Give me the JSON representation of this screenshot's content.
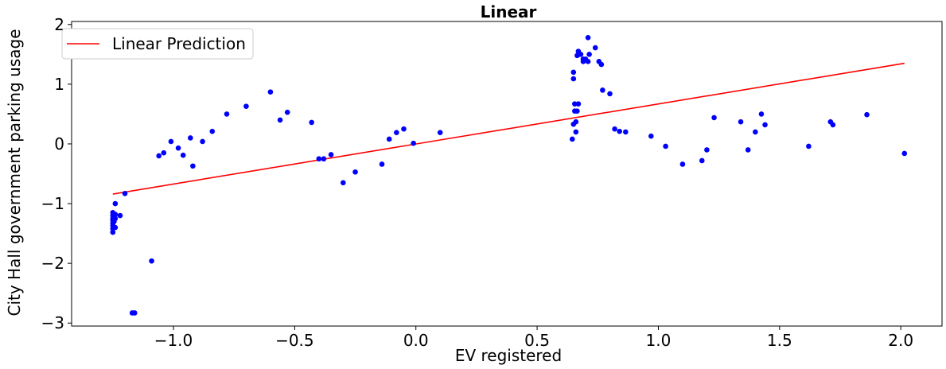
{
  "chart_data": {
    "type": "scatter",
    "title": "Linear",
    "xlabel": "EV registered",
    "ylabel": "City Hall government parking usage",
    "xlim": [
      -1.42,
      2.17
    ],
    "ylim": [
      -3.05,
      2.05
    ],
    "xticks": [
      -1.0,
      -0.5,
      0.0,
      0.5,
      1.0,
      1.5,
      2.0
    ],
    "xtick_labels": [
      "−1.0",
      "−0.5",
      "0.0",
      "0.5",
      "1.0",
      "1.5",
      "2.0"
    ],
    "yticks": [
      -3,
      -2,
      -1,
      0,
      1,
      2
    ],
    "ytick_labels": [
      "−3",
      "−2",
      "−1",
      "0",
      "1",
      "2"
    ],
    "grid": false,
    "legend": {
      "position": "top-left",
      "entries": [
        "Linear Prediction"
      ]
    },
    "series": [
      {
        "kind": "scatter",
        "color": "#0000ff",
        "points": [
          [
            -1.25,
            -1.48
          ],
          [
            -1.25,
            -1.42
          ],
          [
            -1.25,
            -1.37
          ],
          [
            -1.25,
            -1.33
          ],
          [
            -1.25,
            -1.28
          ],
          [
            -1.25,
            -1.25
          ],
          [
            -1.25,
            -1.2
          ],
          [
            -1.25,
            -1.15
          ],
          [
            -1.245,
            -1.3
          ],
          [
            -1.24,
            -1.4
          ],
          [
            -1.24,
            -1.25
          ],
          [
            -1.24,
            -1.18
          ],
          [
            -1.24,
            -1.0
          ],
          [
            -1.22,
            -1.2
          ],
          [
            -1.2,
            -0.83
          ],
          [
            -1.17,
            -2.83
          ],
          [
            -1.16,
            -2.83
          ],
          [
            -1.09,
            -1.96
          ],
          [
            -1.06,
            -0.2
          ],
          [
            -1.04,
            -0.15
          ],
          [
            -1.01,
            0.04
          ],
          [
            -0.98,
            -0.07
          ],
          [
            -0.96,
            -0.19
          ],
          [
            -0.93,
            0.1
          ],
          [
            -0.92,
            -0.37
          ],
          [
            -0.88,
            0.04
          ],
          [
            -0.84,
            0.21
          ],
          [
            -0.78,
            0.5
          ],
          [
            -0.7,
            0.63
          ],
          [
            -0.6,
            0.87
          ],
          [
            -0.56,
            0.4
          ],
          [
            -0.53,
            0.53
          ],
          [
            -0.43,
            0.36
          ],
          [
            -0.4,
            -0.25
          ],
          [
            -0.38,
            -0.25
          ],
          [
            -0.35,
            -0.18
          ],
          [
            -0.3,
            -0.65
          ],
          [
            -0.25,
            -0.47
          ],
          [
            -0.14,
            -0.34
          ],
          [
            -0.11,
            0.08
          ],
          [
            -0.08,
            0.19
          ],
          [
            -0.05,
            0.25
          ],
          [
            -0.01,
            0.01
          ],
          [
            0.1,
            0.19
          ],
          [
            0.645,
            0.08
          ],
          [
            0.65,
            0.33
          ],
          [
            0.65,
            1.09
          ],
          [
            0.65,
            1.2
          ],
          [
            0.655,
            0.67
          ],
          [
            0.655,
            0.55
          ],
          [
            0.66,
            0.2
          ],
          [
            0.66,
            0.37
          ],
          [
            0.665,
            0.55
          ],
          [
            0.665,
            1.48
          ],
          [
            0.67,
            0.67
          ],
          [
            0.67,
            1.55
          ],
          [
            0.675,
            1.5
          ],
          [
            0.68,
            1.5
          ],
          [
            0.69,
            1.38
          ],
          [
            0.69,
            1.42
          ],
          [
            0.7,
            1.42
          ],
          [
            0.71,
            1.38
          ],
          [
            0.71,
            1.78
          ],
          [
            0.715,
            1.5
          ],
          [
            0.74,
            1.61
          ],
          [
            0.755,
            1.38
          ],
          [
            0.765,
            1.33
          ],
          [
            0.77,
            0.9
          ],
          [
            0.8,
            0.84
          ],
          [
            0.82,
            0.25
          ],
          [
            0.84,
            0.21
          ],
          [
            0.865,
            0.2
          ],
          [
            0.97,
            0.13
          ],
          [
            1.03,
            -0.04
          ],
          [
            1.1,
            -0.34
          ],
          [
            1.18,
            -0.28
          ],
          [
            1.2,
            -0.1
          ],
          [
            1.23,
            0.44
          ],
          [
            1.34,
            0.37
          ],
          [
            1.37,
            -0.1
          ],
          [
            1.4,
            0.2
          ],
          [
            1.425,
            0.5
          ],
          [
            1.44,
            0.32
          ],
          [
            1.62,
            -0.04
          ],
          [
            1.71,
            0.37
          ],
          [
            1.72,
            0.32
          ],
          [
            1.86,
            0.49
          ],
          [
            2.015,
            -0.16
          ]
        ]
      },
      {
        "kind": "line",
        "name": "Linear Prediction",
        "color": "#ff0000",
        "points": [
          [
            -1.25,
            -0.84
          ],
          [
            2.015,
            1.35
          ]
        ]
      }
    ]
  }
}
